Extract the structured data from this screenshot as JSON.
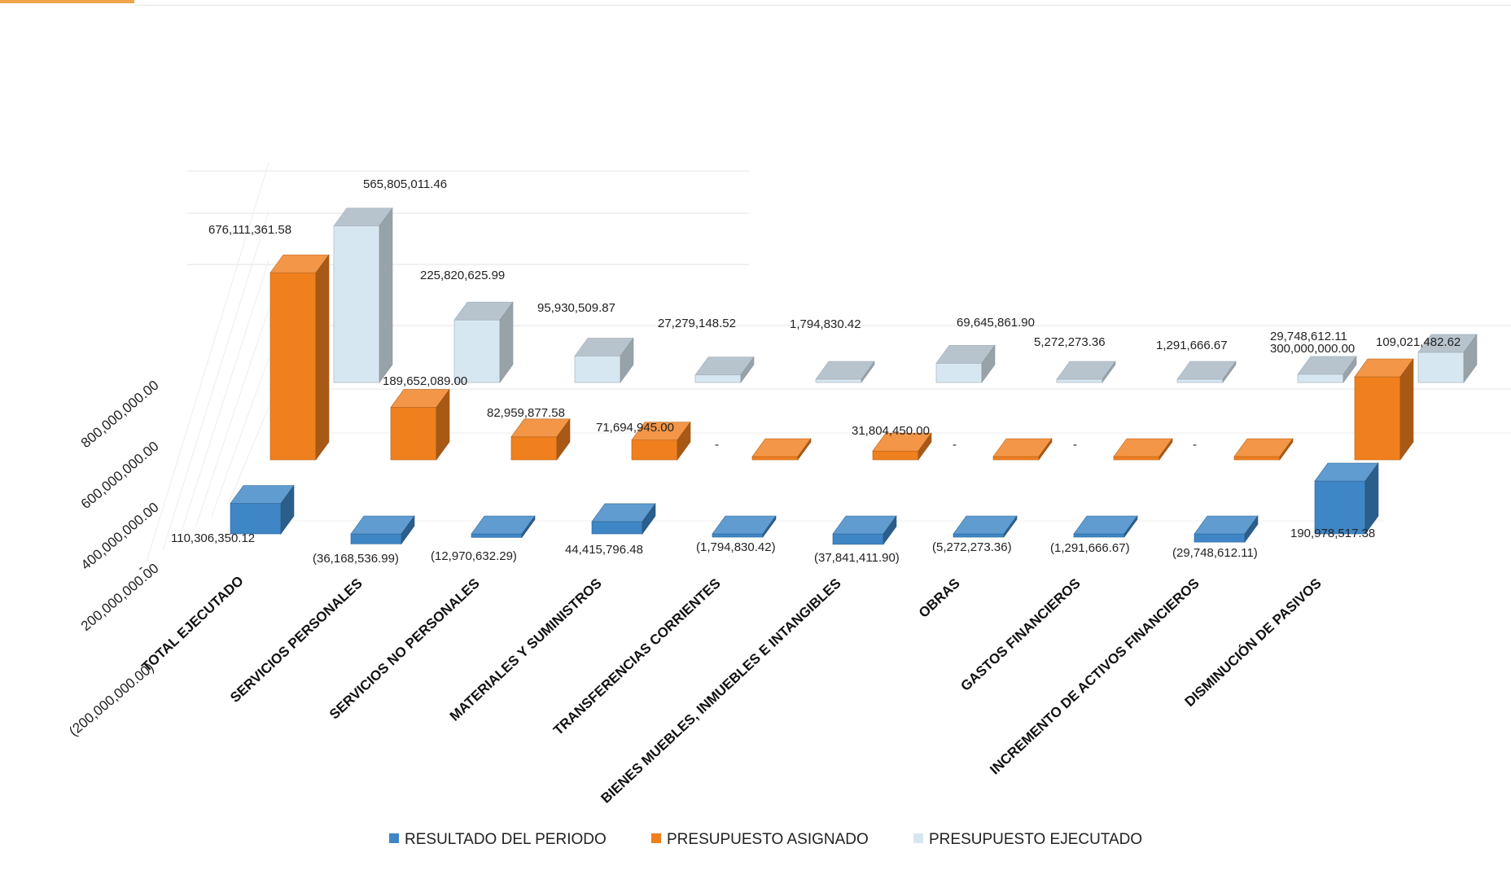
{
  "chart_data": {
    "type": "bar",
    "title": "",
    "xlabel": "",
    "ylabel": "",
    "ylim": [
      -200000000,
      800000000
    ],
    "y_ticks": [
      "(200,000,000.00)",
      "-",
      "200,000,000.00",
      "400,000,000.00",
      "600,000,000.00",
      "800,000,000.00"
    ],
    "categories": [
      "TOTAL EJECUTADO",
      "SERVICIOS PERSONALES",
      "SERVICIOS NO PERSONALES",
      "MATERIALES Y SUMINISTROS",
      "TRANSFERENCIAS CORRIENTES",
      "BIENES MUEBLES, INMUEBLES E INTANGIBLES",
      "OBRAS",
      "GASTOS FINANCIEROS",
      "INCREMENTO DE ACTIVOS FINANCIEROS",
      "DISMINUCIÓN DE PASIVOS"
    ],
    "legend_position": "bottom",
    "series": [
      {
        "name": "RESULTADO DEL PERIODO",
        "color": "#3e86c6",
        "values": [
          110306350.12,
          -36168536.99,
          -12970632.29,
          44415796.48,
          -1794830.42,
          -37841411.9,
          -5272273.36,
          -1291666.67,
          -29748612.11,
          190978517.38
        ],
        "labels": [
          "110,306,350.12",
          "(36,168,536.99)",
          "(12,970,632.29)",
          "44,415,796.48",
          "(1,794,830.42)",
          "(37,841,411.90)",
          "(5,272,273.36)",
          "(1,291,666.67)",
          "(29,748,612.11)",
          "190,978,517.38"
        ]
      },
      {
        "name": "PRESUPUESTO ASIGNADO",
        "color": "#f07f1e",
        "values": [
          676111361.58,
          189652089.0,
          82959877.58,
          71694945.0,
          0,
          31804450.0,
          0,
          0,
          0,
          300000000.0
        ],
        "labels": [
          "676,111,361.58",
          "189,652,089.00",
          "82,959,877.58",
          "71,694,945.00",
          "-",
          "31,804,450.00",
          "-",
          "-",
          "-",
          "300,000,000.00"
        ]
      },
      {
        "name": "PRESUPUESTO EJECUTADO",
        "color": "#d7e7f2",
        "values": [
          565805011.46,
          225820625.99,
          95930509.87,
          27279148.52,
          1794830.42,
          69645861.9,
          5272273.36,
          1291666.67,
          29748612.11,
          109021482.62
        ],
        "labels": [
          "565,805,011.46",
          "225,820,625.99",
          "95,930,509.87",
          "27,279,148.52",
          "1,794,830.42",
          "69,645,861.90",
          "5,272,273.36",
          "1,291,666.67",
          "29,748,612.11",
          "109,021,482.62"
        ]
      }
    ]
  }
}
